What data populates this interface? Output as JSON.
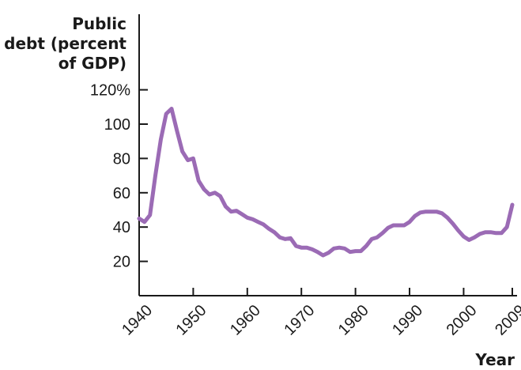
{
  "chart_data": {
    "type": "line",
    "ylabel_lines": [
      "Public",
      "debt (percent",
      "of GDP)"
    ],
    "xlabel": "Year",
    "y_ticks": [
      {
        "value": 120,
        "label": "120%"
      },
      {
        "value": 100,
        "label": "100"
      },
      {
        "value": 80,
        "label": "80"
      },
      {
        "value": 60,
        "label": "60"
      },
      {
        "value": 40,
        "label": "40"
      },
      {
        "value": 20,
        "label": "20"
      }
    ],
    "x_ticks": [
      {
        "value": 1940,
        "label": "1940"
      },
      {
        "value": 1950,
        "label": "1950"
      },
      {
        "value": 1960,
        "label": "1960"
      },
      {
        "value": 1970,
        "label": "1970"
      },
      {
        "value": 1980,
        "label": "1980"
      },
      {
        "value": 1990,
        "label": "1990"
      },
      {
        "value": 2000,
        "label": "2000"
      },
      {
        "value": 2009,
        "label": "2009"
      }
    ],
    "xlim": [
      1940,
      2009
    ],
    "ylim": [
      0,
      130
    ],
    "grid": false,
    "line_color": "#9b6bb5",
    "series": [
      {
        "x": [
          1940,
          1941,
          1942,
          1943,
          1944,
          1945,
          1946,
          1947,
          1948,
          1949,
          1950,
          1951,
          1952,
          1953,
          1954,
          1955,
          1956,
          1957,
          1958,
          1959,
          1960,
          1961,
          1962,
          1963,
          1964,
          1965,
          1966,
          1967,
          1968,
          1969,
          1970,
          1971,
          1972,
          1973,
          1974,
          1975,
          1976,
          1977,
          1978,
          1979,
          1980,
          1981,
          1982,
          1983,
          1984,
          1985,
          1986,
          1987,
          1988,
          1989,
          1990,
          1991,
          1992,
          1993,
          1994,
          1995,
          1996,
          1997,
          1998,
          1999,
          2000,
          2001,
          2002,
          2003,
          2004,
          2005,
          2006,
          2007,
          2008,
          2009
        ],
        "values": [
          45,
          43,
          47,
          70,
          91,
          106,
          109,
          96,
          84,
          79,
          80,
          67,
          62,
          59,
          60,
          58,
          52,
          49,
          49.5,
          47.5,
          45.5,
          44.5,
          43,
          41.5,
          39,
          37,
          34,
          33,
          33.5,
          29,
          28,
          28,
          27,
          25.5,
          23.5,
          25,
          27.5,
          28,
          27.5,
          25.5,
          26,
          26,
          29,
          33,
          34,
          36.5,
          39.5,
          41,
          41,
          41,
          43,
          46.5,
          48.5,
          49,
          49,
          49,
          48,
          45.5,
          42,
          38,
          34.5,
          32.5,
          34,
          36,
          37,
          37,
          36.5,
          36.5,
          40,
          53
        ]
      }
    ]
  }
}
